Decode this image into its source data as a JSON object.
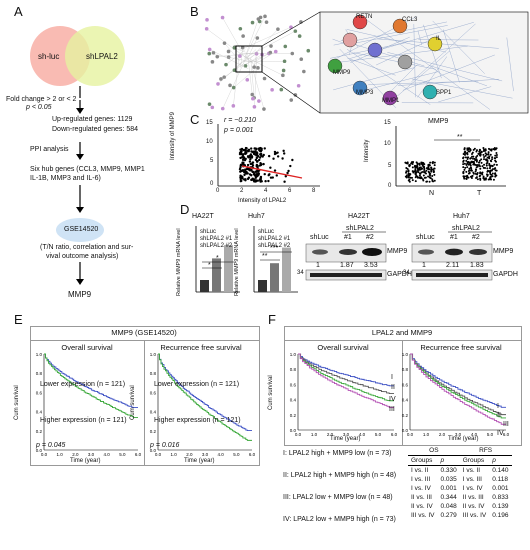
{
  "panels": {
    "A": "A",
    "B": "B",
    "C": "C",
    "D": "D",
    "E": "E",
    "F": "F"
  },
  "A": {
    "venn_left": "sh-luc",
    "venn_right": "shLPAL2",
    "fold_line1": "Fold change > 2 or < 2",
    "fold_line2": "p < 0.05",
    "up": "Up-regulated genes: 1129",
    "down": "Down-regulated genes: 584",
    "ppi": "PPI analysis",
    "hub1": "Six hub genes (CCL3, MMP9, MMP1",
    "hub2": "IL-1B, MMP3 and IL-6)",
    "gse": "GSE14520",
    "anal1": "(T/N ratio, correlation and sur-",
    "anal2": "vival outcome analysis)",
    "result": "MMP9"
  },
  "B": {
    "nodes": [
      "RETN",
      "CCL3",
      "IL",
      "MMP9",
      "MMP3",
      "MMP1",
      "SPP1"
    ]
  },
  "C": {
    "corr_r": "r = −0.210",
    "corr_p": "p = 0.001",
    "scatter_ylabel": "Intensity of MMP9",
    "scatter_xlabel": "Intensity of LPAL2",
    "box_title": "MMP9",
    "box_ylabel": "Intensity",
    "box_sig": "**",
    "box_x": [
      "N",
      "T"
    ]
  },
  "D": {
    "ha22t": "HA22T",
    "huh7": "Huh7",
    "ylabel": "Relative MMP9 mRNA level",
    "legend": [
      "shLuc",
      "shLPAL2 #1",
      "shLPAL2 #2"
    ],
    "sig1": "*",
    "sig2": "**",
    "sig3": "***",
    "wb_ha22t": "HA22T",
    "wb_huh7": "Huh7",
    "shluc": "shLuc",
    "shlpal2": "shLPAL2",
    "n1": "#1",
    "n2": "#2",
    "ha22t_vals": [
      "1",
      "1.87",
      "3.53"
    ],
    "huh7_vals": [
      "1",
      "2.11",
      "1.83"
    ],
    "mmp9": "MMP9",
    "gapdh": "GAPDH",
    "mw1": "34",
    "mw2": "34"
  },
  "E": {
    "title": "MMP9 (GSE14520)",
    "os": "Overall survival",
    "rfs": "Recurrence free survival",
    "low_os": "Lower expression (n = 121)",
    "high_os": "Higher expression (n = 121)",
    "low_rfs": "Lower expression (n = 121)",
    "high_rfs": "Higher expression (n = 121)",
    "p_os": "p = 0.045",
    "p_rfs": "p = 0.016",
    "ylabel": "Cum survival",
    "xlabel": "Time (year)"
  },
  "F": {
    "title": "LPAL2 and MMP9",
    "os": "Overall survival",
    "rfs": "Recurrence free survival",
    "ylabel": "Cum survival",
    "xlabel": "Time (year)",
    "curve_labels": [
      "I",
      "II",
      "IV",
      "III"
    ],
    "curve_labels_rfs": [
      "I",
      "II",
      "III",
      "IV"
    ],
    "groups": [
      "I: LPAL2 high + MMP9 low (n = 73)",
      "II: LPAL2 high + MMP9 high (n = 48)",
      "III: LPAL2 low + MMP9 low (n = 48)",
      "IV: LPAL2 low + MMP9 high (n = 73)"
    ],
    "table_os": "OS",
    "table_rfs": "RFS",
    "col_groups": "Groups",
    "col_p": "p",
    "rows": [
      [
        "I vs. II",
        "0.330",
        "I vs. II",
        "0.140"
      ],
      [
        "I vs. III",
        "0.035",
        "I vs. III",
        "0.118"
      ],
      [
        "I vs. IV",
        "0.001",
        "I vs. IV",
        "0.001"
      ],
      [
        "II vs. III",
        "0.344",
        "II vs. III",
        "0.833"
      ],
      [
        "II vs. IV",
        "0.048",
        "II vs. IV",
        "0.139"
      ],
      [
        "III vs. IV",
        "0.279",
        "III vs. IV",
        "0.196"
      ]
    ]
  },
  "ticks": {
    "surv_y": [
      "1.0",
      "0.8",
      "0.6",
      "0.4",
      "0.2",
      "0.0"
    ],
    "surv_x": [
      "0.0",
      "1.0",
      "2.0",
      "3.0",
      "4.0",
      "5.0",
      "6.0"
    ],
    "scatter_y": [
      "15",
      "10",
      "5",
      "0"
    ],
    "scatter_x": [
      "0",
      "2",
      "4",
      "6",
      "8"
    ],
    "box_y": [
      "15",
      "10",
      "5",
      "0"
    ]
  },
  "colors": {
    "low": "#3b4fc4",
    "high": "#3aa83a",
    "curveIII": "#b34fb3",
    "venn_left": "#f7a49a",
    "venn_right": "#e6f3a0",
    "gse_fill": "#cfe3f5",
    "bar_dark": "#333333",
    "bar_mid": "#777777",
    "bar_light": "#aaaaaa"
  },
  "chart_data": [
    {
      "type": "bar",
      "title": "HA22T",
      "ylabel": "Relative MMP9 mRNA level",
      "categories": [
        "shLuc",
        "shLPAL2 #1",
        "shLPAL2 #2"
      ],
      "values": [
        1,
        2.8,
        3.9
      ],
      "ylim": [
        0,
        5
      ]
    },
    {
      "type": "bar",
      "title": "Huh7",
      "ylabel": "Relative MMP9 mRNA level",
      "categories": [
        "shLuc",
        "shLPAL2 #1",
        "shLPAL2 #2"
      ],
      "values": [
        1,
        2.4,
        3.7
      ],
      "ylim": [
        0,
        5
      ]
    }
  ]
}
